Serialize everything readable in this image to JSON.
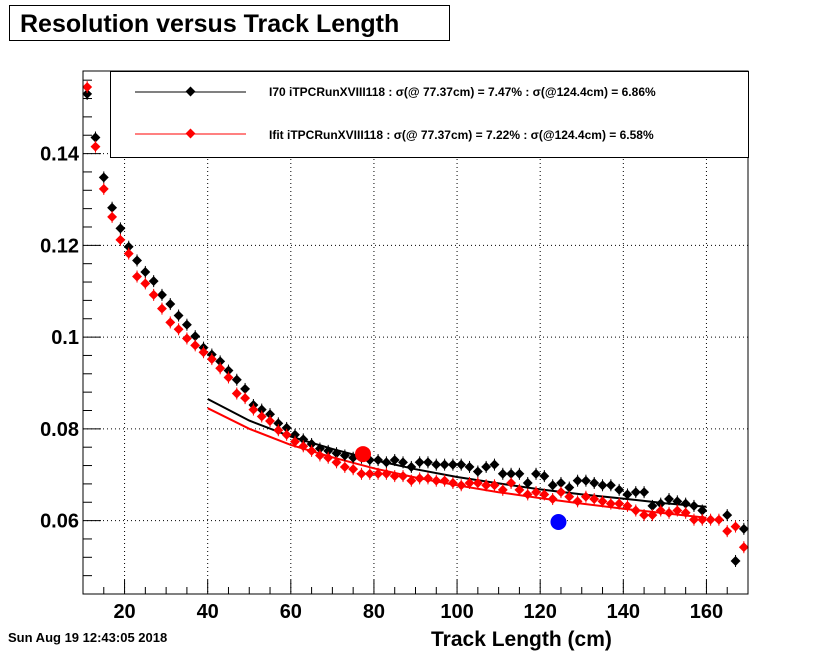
{
  "title": "Resolution versus Track Length",
  "timestamp": "Sun Aug 19 12:43:05 2018",
  "chart_data": {
    "type": "scatter",
    "xlabel": "Track Length (cm)",
    "ylabel": "",
    "xlim": [
      10,
      170
    ],
    "ylim": [
      0.044,
      0.158
    ],
    "grid": true,
    "legend_position": "top",
    "x_ticks": [
      20,
      40,
      60,
      80,
      100,
      120,
      140,
      160
    ],
    "y_ticks": [
      0.06,
      0.08,
      0.1,
      0.12,
      0.14
    ],
    "x_tick_labels": [
      "20",
      "40",
      "60",
      "80",
      "100",
      "120",
      "140",
      "160"
    ],
    "y_tick_labels": [
      "0.06",
      "0.08",
      "0.1",
      "0.12",
      "0.14"
    ],
    "series": [
      {
        "name": "I70  iTPCRunXVIII118 : σ(@ 77.37cm) =  7.47% : σ(@124.4cm) =  6.86%",
        "color": "#000000",
        "points": [
          [
            11,
            0.153
          ],
          [
            13,
            0.1435
          ],
          [
            15,
            0.1348
          ],
          [
            17,
            0.1282
          ],
          [
            19,
            0.1237
          ],
          [
            21,
            0.1197
          ],
          [
            23,
            0.1167
          ],
          [
            25,
            0.1142
          ],
          [
            27,
            0.1122
          ],
          [
            29,
            0.1092
          ],
          [
            31,
            0.1072
          ],
          [
            33,
            0.1047
          ],
          [
            35,
            0.1027
          ],
          [
            37,
            0.1002
          ],
          [
            39,
            0.0977
          ],
          [
            41,
            0.0962
          ],
          [
            43,
            0.0947
          ],
          [
            45,
            0.0927
          ],
          [
            47,
            0.0907
          ],
          [
            49,
            0.0887
          ],
          [
            51,
            0.0852
          ],
          [
            53,
            0.0842
          ],
          [
            55,
            0.0832
          ],
          [
            57,
            0.0812
          ],
          [
            59,
            0.0802
          ],
          [
            61,
            0.0787
          ],
          [
            63,
            0.0777
          ],
          [
            65,
            0.0767
          ],
          [
            67,
            0.0757
          ],
          [
            69,
            0.0752
          ],
          [
            71,
            0.0747
          ],
          [
            73,
            0.0742
          ],
          [
            75,
            0.0737
          ],
          [
            77,
            0.0737
          ],
          [
            79,
            0.0732
          ],
          [
            81,
            0.0732
          ],
          [
            83,
            0.0727
          ],
          [
            85,
            0.0732
          ],
          [
            87,
            0.0727
          ],
          [
            89,
            0.0717
          ],
          [
            91,
            0.0727
          ],
          [
            93,
            0.0727
          ],
          [
            95,
            0.0722
          ],
          [
            97,
            0.0722
          ],
          [
            99,
            0.0722
          ],
          [
            101,
            0.0722
          ],
          [
            103,
            0.0717
          ],
          [
            105,
            0.0707
          ],
          [
            107,
            0.0717
          ],
          [
            109,
            0.0722
          ],
          [
            111,
            0.0702
          ],
          [
            113,
            0.0702
          ],
          [
            115,
            0.0702
          ],
          [
            117,
            0.0682
          ],
          [
            119,
            0.0702
          ],
          [
            121,
            0.0697
          ],
          [
            123,
            0.0677
          ],
          [
            125,
            0.0682
          ],
          [
            127,
            0.0672
          ],
          [
            129,
            0.0687
          ],
          [
            131,
            0.0687
          ],
          [
            133,
            0.0682
          ],
          [
            135,
            0.0677
          ],
          [
            137,
            0.0677
          ],
          [
            139,
            0.0667
          ],
          [
            141,
            0.0657
          ],
          [
            143,
            0.0662
          ],
          [
            145,
            0.0662
          ],
          [
            147,
            0.0632
          ],
          [
            149,
            0.0637
          ],
          [
            151,
            0.0647
          ],
          [
            153,
            0.0642
          ],
          [
            155,
            0.0637
          ],
          [
            157,
            0.0632
          ],
          [
            159,
            0.0622
          ],
          [
            165,
            0.0612
          ],
          [
            167,
            0.0512
          ],
          [
            169,
            0.0582
          ]
        ],
        "fit": [
          [
            40,
            0.0865
          ],
          [
            50,
            0.0818
          ],
          [
            60,
            0.0783
          ],
          [
            70,
            0.0756
          ],
          [
            80,
            0.0732
          ],
          [
            90,
            0.0712
          ],
          [
            100,
            0.0695
          ],
          [
            110,
            0.0681
          ],
          [
            120,
            0.0668
          ],
          [
            130,
            0.0657
          ],
          [
            140,
            0.0648
          ],
          [
            150,
            0.0638
          ],
          [
            160,
            0.063
          ]
        ]
      },
      {
        "name": "Ifit iTPCRunXVIII118 : σ(@ 77.37cm) =  7.22% : σ(@124.4cm) =  6.58%",
        "color": "#ff0000",
        "points": [
          [
            11,
            0.1545
          ],
          [
            13,
            0.1415
          ],
          [
            15,
            0.1323
          ],
          [
            17,
            0.1262
          ],
          [
            19,
            0.1212
          ],
          [
            21,
            0.1182
          ],
          [
            23,
            0.1132
          ],
          [
            25,
            0.1117
          ],
          [
            27,
            0.1092
          ],
          [
            29,
            0.1062
          ],
          [
            31,
            0.1032
          ],
          [
            33,
            0.1017
          ],
          [
            35,
            0.0997
          ],
          [
            37,
            0.0982
          ],
          [
            39,
            0.0967
          ],
          [
            41,
            0.0952
          ],
          [
            43,
            0.0932
          ],
          [
            45,
            0.0912
          ],
          [
            47,
            0.0877
          ],
          [
            49,
            0.0867
          ],
          [
            51,
            0.0842
          ],
          [
            53,
            0.0827
          ],
          [
            55,
            0.0817
          ],
          [
            57,
            0.0797
          ],
          [
            59,
            0.0787
          ],
          [
            61,
            0.0772
          ],
          [
            63,
            0.0762
          ],
          [
            65,
            0.0752
          ],
          [
            67,
            0.0742
          ],
          [
            69,
            0.0737
          ],
          [
            71,
            0.0727
          ],
          [
            73,
            0.0717
          ],
          [
            75,
            0.0712
          ],
          [
            77,
            0.0702
          ],
          [
            79,
            0.0702
          ],
          [
            81,
            0.0702
          ],
          [
            83,
            0.0702
          ],
          [
            85,
            0.0697
          ],
          [
            87,
            0.0697
          ],
          [
            89,
            0.0687
          ],
          [
            91,
            0.0692
          ],
          [
            93,
            0.0692
          ],
          [
            95,
            0.0687
          ],
          [
            97,
            0.0687
          ],
          [
            99,
            0.0682
          ],
          [
            101,
            0.0677
          ],
          [
            103,
            0.0682
          ],
          [
            105,
            0.0682
          ],
          [
            107,
            0.0677
          ],
          [
            109,
            0.0677
          ],
          [
            111,
            0.0667
          ],
          [
            113,
            0.0682
          ],
          [
            115,
            0.0667
          ],
          [
            117,
            0.0657
          ],
          [
            119,
            0.0662
          ],
          [
            121,
            0.0657
          ],
          [
            123,
            0.0647
          ],
          [
            125,
            0.0662
          ],
          [
            127,
            0.0652
          ],
          [
            129,
            0.0642
          ],
          [
            131,
            0.0652
          ],
          [
            133,
            0.0647
          ],
          [
            135,
            0.0642
          ],
          [
            137,
            0.0637
          ],
          [
            139,
            0.0637
          ],
          [
            141,
            0.0632
          ],
          [
            143,
            0.0622
          ],
          [
            145,
            0.0612
          ],
          [
            147,
            0.0612
          ],
          [
            149,
            0.0622
          ],
          [
            151,
            0.0617
          ],
          [
            153,
            0.0622
          ],
          [
            155,
            0.0617
          ],
          [
            157,
            0.0602
          ],
          [
            159,
            0.0602
          ],
          [
            161,
            0.0602
          ],
          [
            163,
            0.0602
          ],
          [
            165,
            0.0577
          ],
          [
            167,
            0.0587
          ],
          [
            169,
            0.0542
          ]
        ],
        "fit": [
          [
            40,
            0.0845
          ],
          [
            50,
            0.08
          ],
          [
            60,
            0.0765
          ],
          [
            70,
            0.0738
          ],
          [
            80,
            0.0714
          ],
          [
            90,
            0.0694
          ],
          [
            100,
            0.0677
          ],
          [
            110,
            0.0662
          ],
          [
            120,
            0.0649
          ],
          [
            130,
            0.0637
          ],
          [
            140,
            0.0626
          ],
          [
            150,
            0.0616
          ],
          [
            160,
            0.0606
          ]
        ]
      }
    ],
    "markers": [
      {
        "x": 77.37,
        "y": 0.0745,
        "color": "#ff0000"
      },
      {
        "x": 124.4,
        "y": 0.0597,
        "color": "#0000ff"
      }
    ]
  }
}
